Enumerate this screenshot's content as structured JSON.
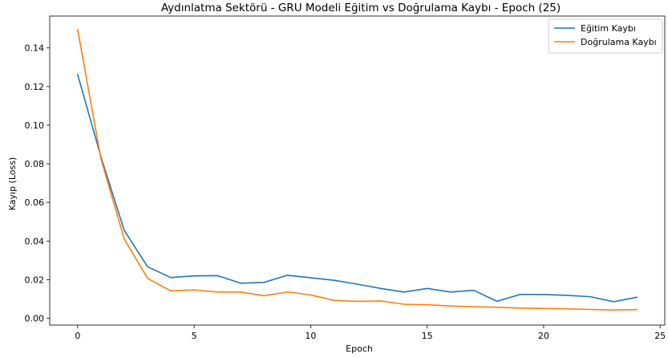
{
  "chart_data": {
    "type": "line",
    "title": "Aydınlatma Sektörü - GRU Modeli Eğitim vs Doğrulama Kaybı - Epoch (25)",
    "xlabel": "Epoch",
    "ylabel": "Kayıp (Loss)",
    "xlim": [
      -1.2,
      25.2
    ],
    "ylim": [
      -0.0035,
      0.1565
    ],
    "x_ticks": [
      0,
      5,
      10,
      15,
      20,
      25
    ],
    "y_ticks": [
      0.0,
      0.02,
      0.04,
      0.06,
      0.08,
      0.1,
      0.12,
      0.14
    ],
    "x_tick_labels": [
      "0",
      "5",
      "10",
      "15",
      "20",
      "25"
    ],
    "y_tick_labels": [
      "0.00",
      "0.02",
      "0.04",
      "0.06",
      "0.08",
      "0.10",
      "0.12",
      "0.14"
    ],
    "grid": false,
    "legend_position": "top-right",
    "x": [
      0,
      1,
      2,
      3,
      4,
      5,
      6,
      7,
      8,
      9,
      10,
      11,
      12,
      13,
      14,
      15,
      16,
      17,
      18,
      19,
      20,
      21,
      22,
      23,
      24
    ],
    "series": [
      {
        "name": "Eğitim Kaybı",
        "color": "#1f77b4",
        "values": [
          0.1262,
          0.0835,
          0.0455,
          0.0267,
          0.0211,
          0.022,
          0.0221,
          0.0182,
          0.0186,
          0.0223,
          0.021,
          0.0197,
          0.0177,
          0.0155,
          0.0136,
          0.0155,
          0.0136,
          0.0145,
          0.0088,
          0.0124,
          0.0123,
          0.0119,
          0.0112,
          0.0086,
          0.0109
        ]
      },
      {
        "name": "Doğrulama Kaybı",
        "color": "#ff7f0e",
        "values": [
          0.1495,
          0.0825,
          0.041,
          0.0207,
          0.0142,
          0.0147,
          0.0136,
          0.0136,
          0.0117,
          0.0137,
          0.0121,
          0.0093,
          0.0088,
          0.009,
          0.0073,
          0.007,
          0.0064,
          0.006,
          0.0057,
          0.0053,
          0.0051,
          0.0049,
          0.0046,
          0.0043,
          0.0045
        ]
      }
    ]
  }
}
